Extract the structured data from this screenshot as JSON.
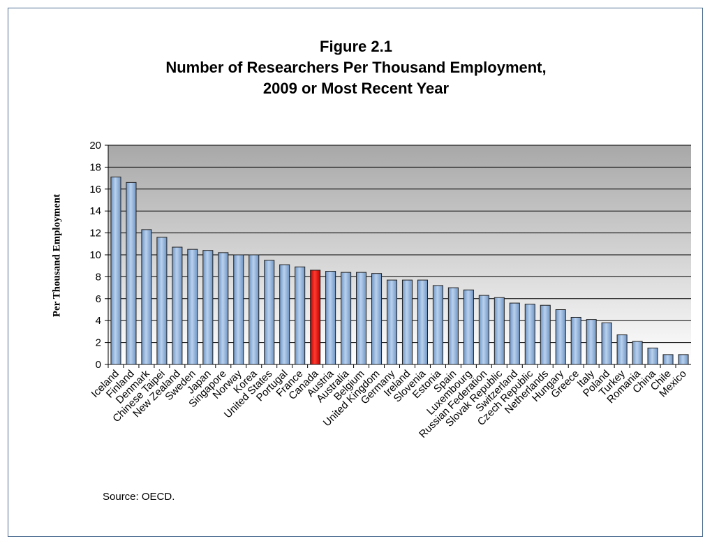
{
  "title_lines": [
    "Figure 2.1",
    "Number of Researchers Per Thousand Employment,",
    "2009 or Most Recent Year"
  ],
  "source": "Source: OECD.",
  "colors": {
    "bar": "#8db3e2",
    "highlight": "#e02020",
    "plot_bg_top": "#a9a9a9",
    "plot_bg_bottom": "#ffffff",
    "border": "#4a6b8f"
  },
  "chart_data": {
    "type": "bar",
    "title": "Figure 2.1 Number of Researchers Per Thousand Employment, 2009 or Most Recent Year",
    "xlabel": "",
    "ylabel": "Per Thousand Employment",
    "ylim": [
      0,
      20
    ],
    "yticks": [
      0,
      2,
      4,
      6,
      8,
      10,
      12,
      14,
      16,
      18,
      20
    ],
    "grid": true,
    "highlight": "Canada",
    "categories": [
      "Iceland",
      "Finland",
      "Denmark",
      "Chinese Taipei",
      "New Zealand",
      "Sweden",
      "Japan",
      "Singapore",
      "Norway",
      "Korea",
      "United States",
      "Portugal",
      "France",
      "Canada",
      "Austria",
      "Australia",
      "Belgium",
      "United Kingdom",
      "Germany",
      "Ireland",
      "Slovenia",
      "Estonia",
      "Spain",
      "Luxembourg",
      "Russian Federation",
      "Slovak Republic",
      "Switzerland",
      "Czech Republic",
      "Netherlands",
      "Hungary",
      "Greece",
      "Italy",
      "Poland",
      "Turkey",
      "Romania",
      "China",
      "Chile",
      "Mexico"
    ],
    "values": [
      17.1,
      16.6,
      12.3,
      11.6,
      10.7,
      10.5,
      10.4,
      10.2,
      10.0,
      10.0,
      9.5,
      9.1,
      8.9,
      8.6,
      8.5,
      8.4,
      8.4,
      8.3,
      7.7,
      7.7,
      7.7,
      7.2,
      7.0,
      6.8,
      6.3,
      6.1,
      5.6,
      5.5,
      5.4,
      5.0,
      4.3,
      4.1,
      3.8,
      2.7,
      2.1,
      1.5,
      0.9,
      0.9
    ]
  }
}
